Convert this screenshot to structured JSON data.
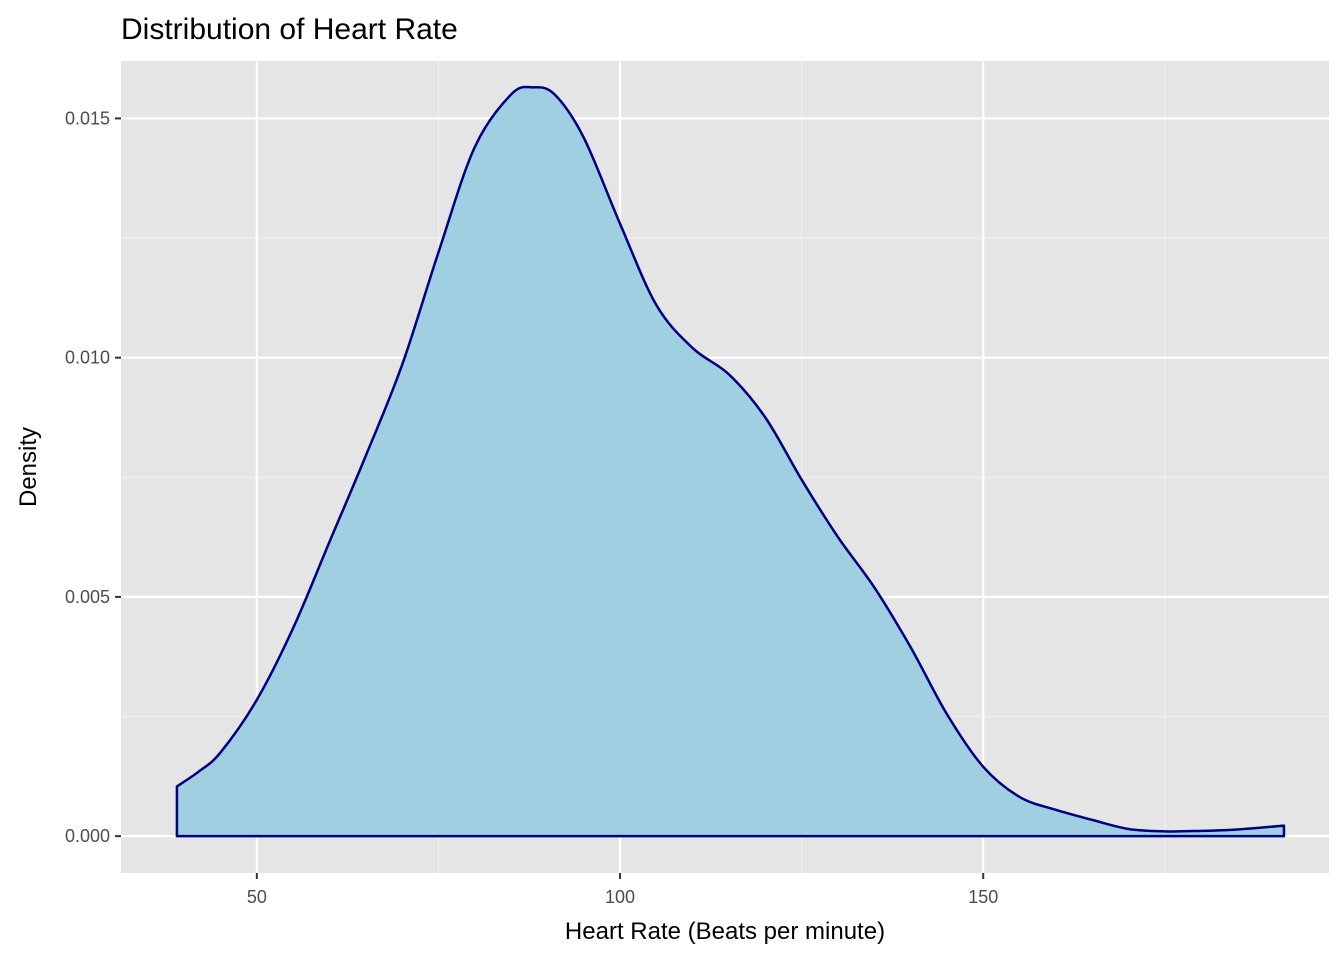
{
  "chart_data": {
    "type": "area",
    "title": "Distribution of Heart Rate",
    "xlabel": "Heart Rate (Beats per minute)",
    "ylabel": "Density",
    "xlim": [
      31.3,
      197.6
    ],
    "ylim": [
      -0.00077,
      0.0162
    ],
    "x_ticks": [
      50,
      100,
      150
    ],
    "x_tick_labels": [
      "50",
      "100",
      "150"
    ],
    "y_ticks": [
      0.0,
      0.005,
      0.01,
      0.015
    ],
    "y_tick_labels": [
      "0.000",
      "0.005",
      "0.010",
      "0.015"
    ],
    "grid": true,
    "fill_color": "#9fcfe0",
    "line_color": "#000080",
    "panel_color": "#e5e5e5",
    "series": [
      {
        "x": [
          39,
          42,
          45,
          50,
          55,
          60,
          65,
          70,
          75,
          80,
          85,
          88,
          91,
          95,
          100,
          105,
          110,
          115,
          120,
          125,
          130,
          135,
          140,
          145,
          150,
          155,
          160,
          165,
          170,
          175,
          180,
          185,
          191.4
        ],
        "y": [
          0.00104,
          0.00135,
          0.00175,
          0.00285,
          0.00435,
          0.00615,
          0.00795,
          0.00985,
          0.0122,
          0.0144,
          0.0155,
          0.01565,
          0.0155,
          0.0146,
          0.0128,
          0.0111,
          0.0102,
          0.00965,
          0.00875,
          0.00745,
          0.00625,
          0.0052,
          0.00395,
          0.00255,
          0.00145,
          0.00082,
          0.00055,
          0.00034,
          0.00015,
          0.0001,
          0.00011,
          0.00014,
          0.00022
        ]
      }
    ]
  }
}
